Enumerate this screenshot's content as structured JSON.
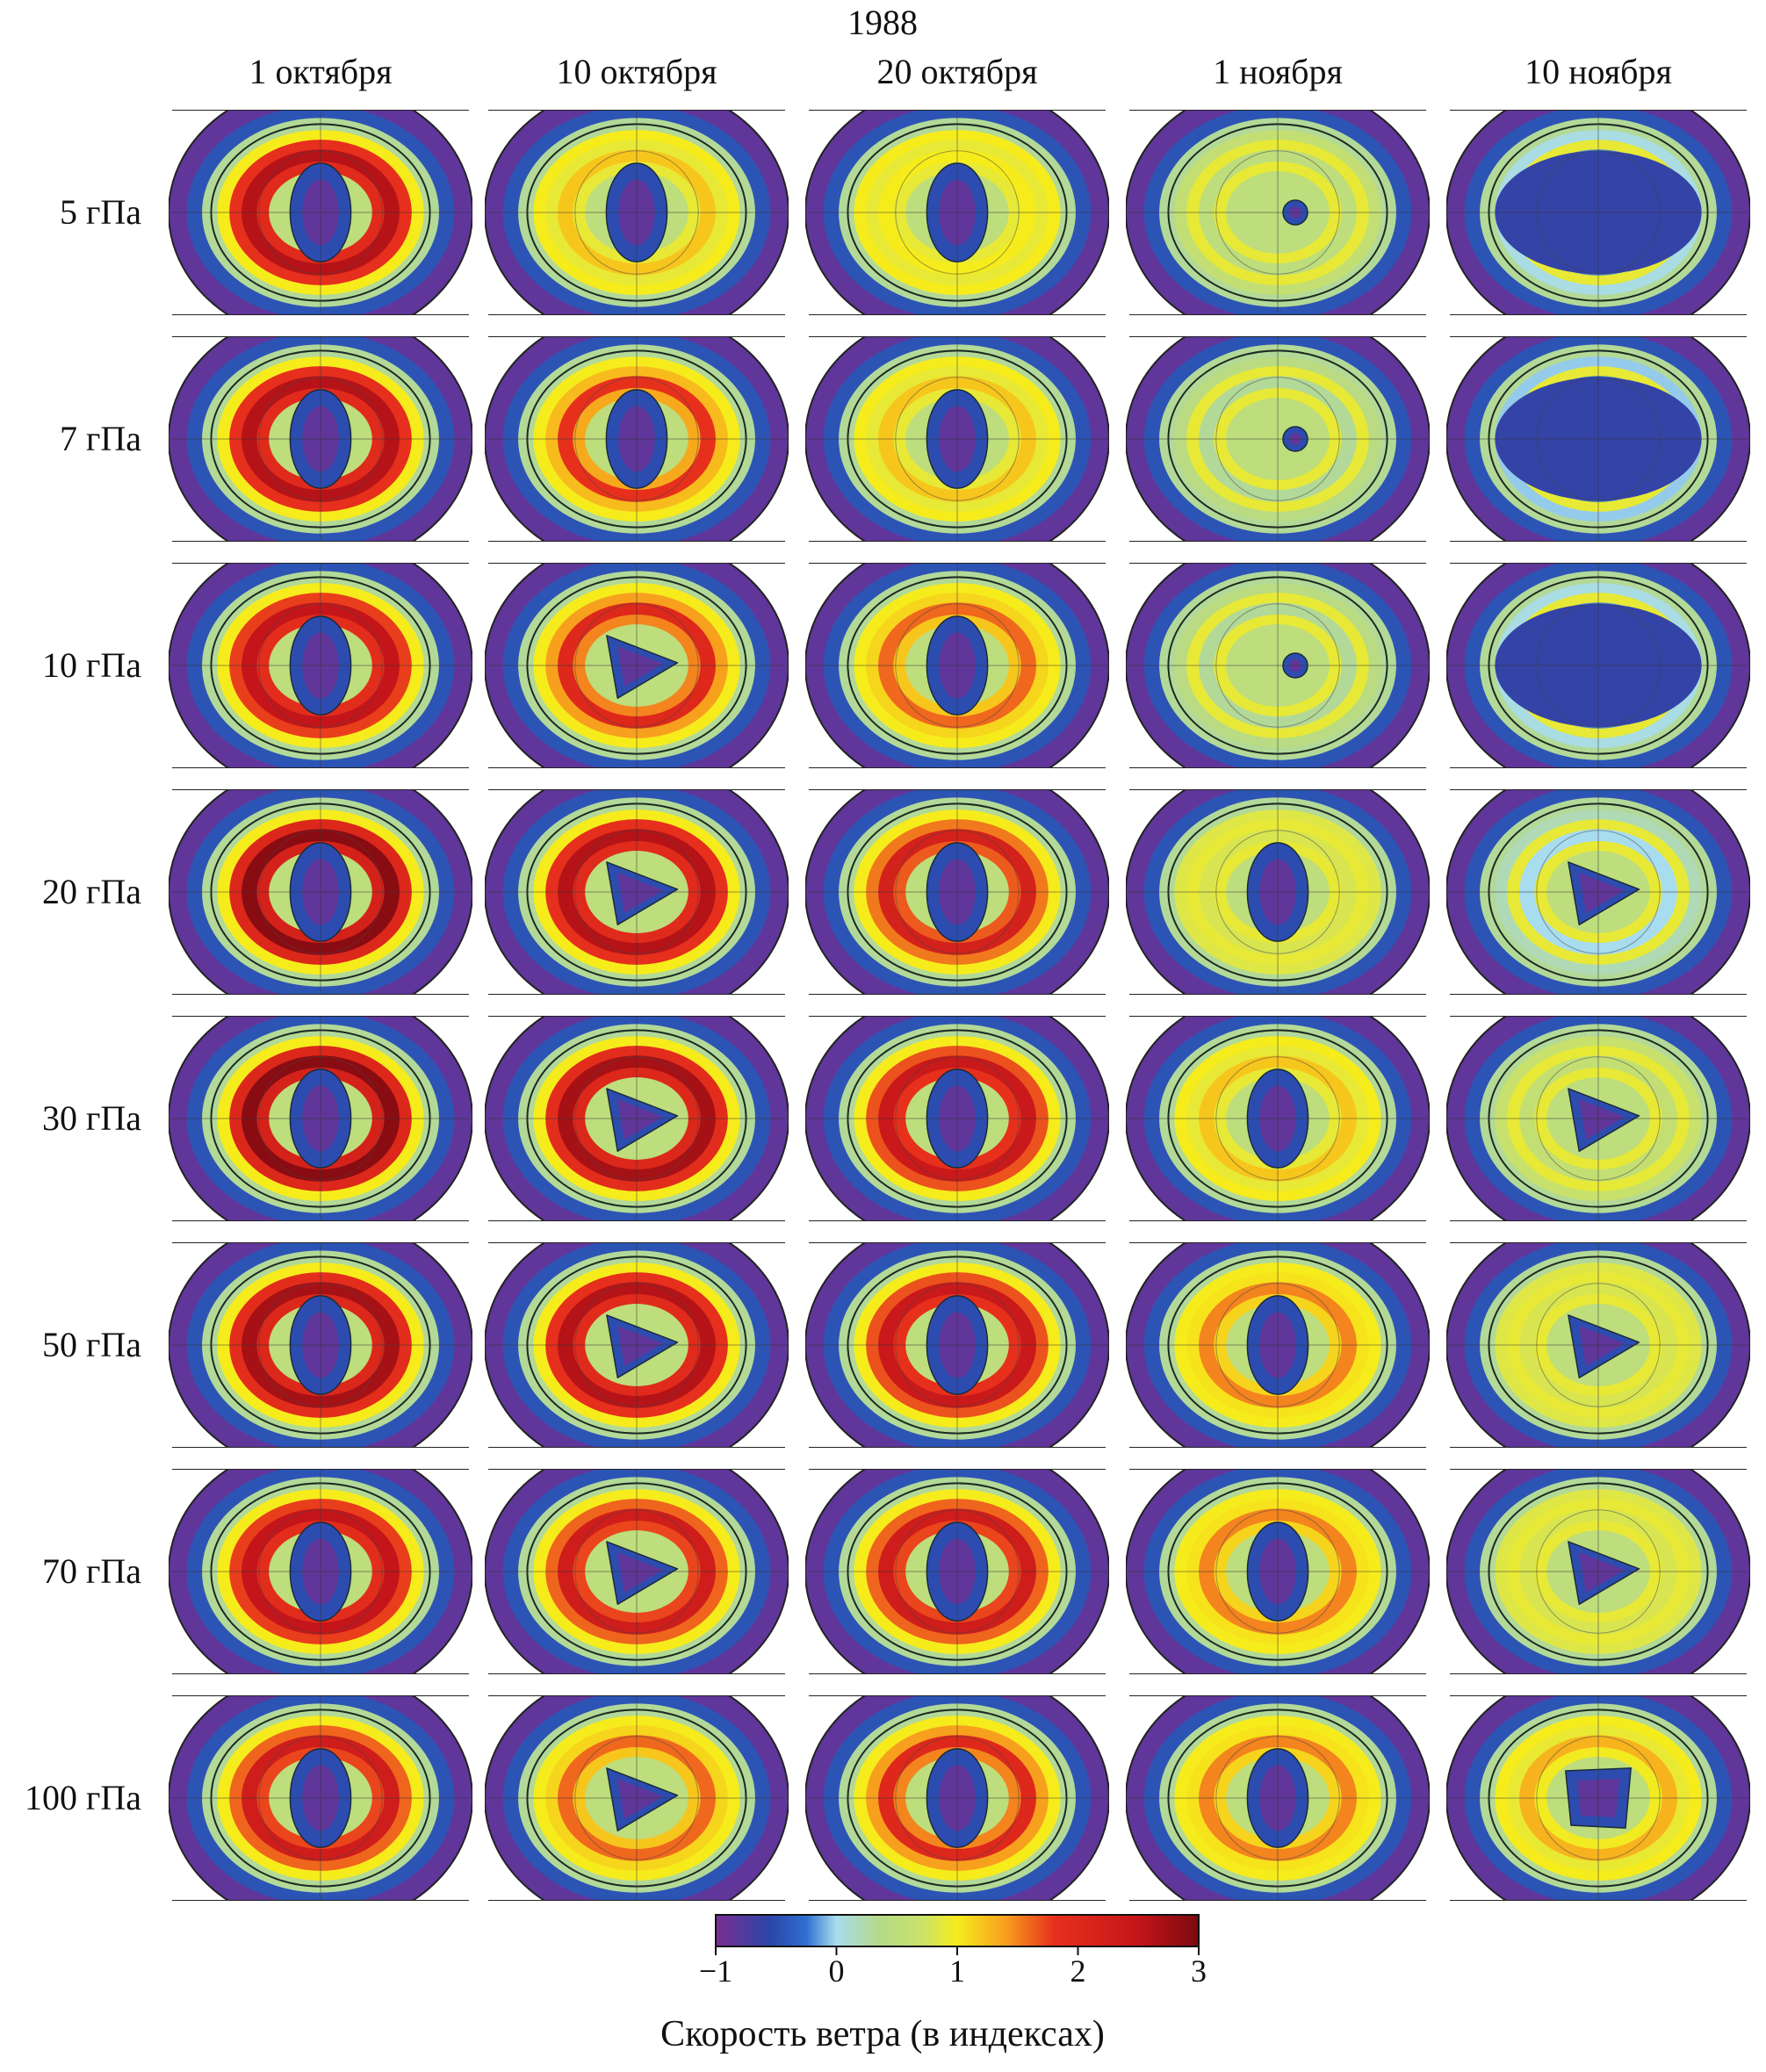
{
  "year": "1988",
  "dates": [
    "1 октября",
    "10 октября",
    "20 октября",
    "1 ноября",
    "10 ноября"
  ],
  "levels": [
    "5 гПа",
    "7 гПа",
    "10 гПа",
    "20 гПа",
    "30 гПа",
    "50 гПа",
    "70 гПа",
    "100 гПа"
  ],
  "colorbar": {
    "title": "Скорость ветра (в индексах)",
    "ticks": [
      "−1",
      "0",
      "1",
      "2",
      "3"
    ],
    "tick_values": [
      -1,
      0,
      1,
      2,
      3
    ],
    "range": [
      -1,
      3
    ],
    "stops": [
      {
        "v": -1.0,
        "color": "#7a2e93"
      },
      {
        "v": -0.55,
        "color": "#2b46a8"
      },
      {
        "v": -0.25,
        "color": "#2f6fd0"
      },
      {
        "v": 0.0,
        "color": "#a8dcef"
      },
      {
        "v": 0.35,
        "color": "#b5d98a"
      },
      {
        "v": 0.7,
        "color": "#c9e26a"
      },
      {
        "v": 1.0,
        "color": "#f6ec1c"
      },
      {
        "v": 1.4,
        "color": "#f7a01e"
      },
      {
        "v": 1.8,
        "color": "#e7301c"
      },
      {
        "v": 2.5,
        "color": "#c4151a"
      },
      {
        "v": 3.0,
        "color": "#7a0a10"
      }
    ]
  },
  "panels": {
    "jet_strength": [
      [
        2.6,
        1.2,
        1.0,
        0.5,
        -0.2
      ],
      [
        2.6,
        1.8,
        1.2,
        0.3,
        -0.3
      ],
      [
        2.5,
        2.0,
        1.6,
        0.3,
        -0.2
      ],
      [
        2.9,
        2.6,
        2.2,
        0.8,
        0.0
      ],
      [
        2.9,
        2.7,
        2.4,
        1.2,
        0.6
      ],
      [
        2.7,
        2.6,
        2.4,
        1.5,
        0.8
      ],
      [
        2.5,
        2.3,
        2.3,
        1.5,
        0.8
      ],
      [
        2.3,
        1.6,
        2.0,
        1.5,
        1.3
      ]
    ],
    "vortex_shape": [
      [
        "oval",
        "oval",
        "oval",
        "dot",
        "none"
      ],
      [
        "oval",
        "oval",
        "oval",
        "dot",
        "none"
      ],
      [
        "oval",
        "triangle",
        "oval",
        "dot",
        "none"
      ],
      [
        "oval",
        "triangle",
        "oval",
        "oval",
        "triangle"
      ],
      [
        "oval",
        "triangle",
        "oval",
        "oval",
        "triangle"
      ],
      [
        "oval",
        "triangle",
        "oval",
        "oval",
        "triangle"
      ],
      [
        "oval",
        "triangle",
        "oval",
        "oval",
        "triangle"
      ],
      [
        "oval",
        "triangle",
        "oval",
        "oval",
        "square"
      ]
    ]
  }
}
